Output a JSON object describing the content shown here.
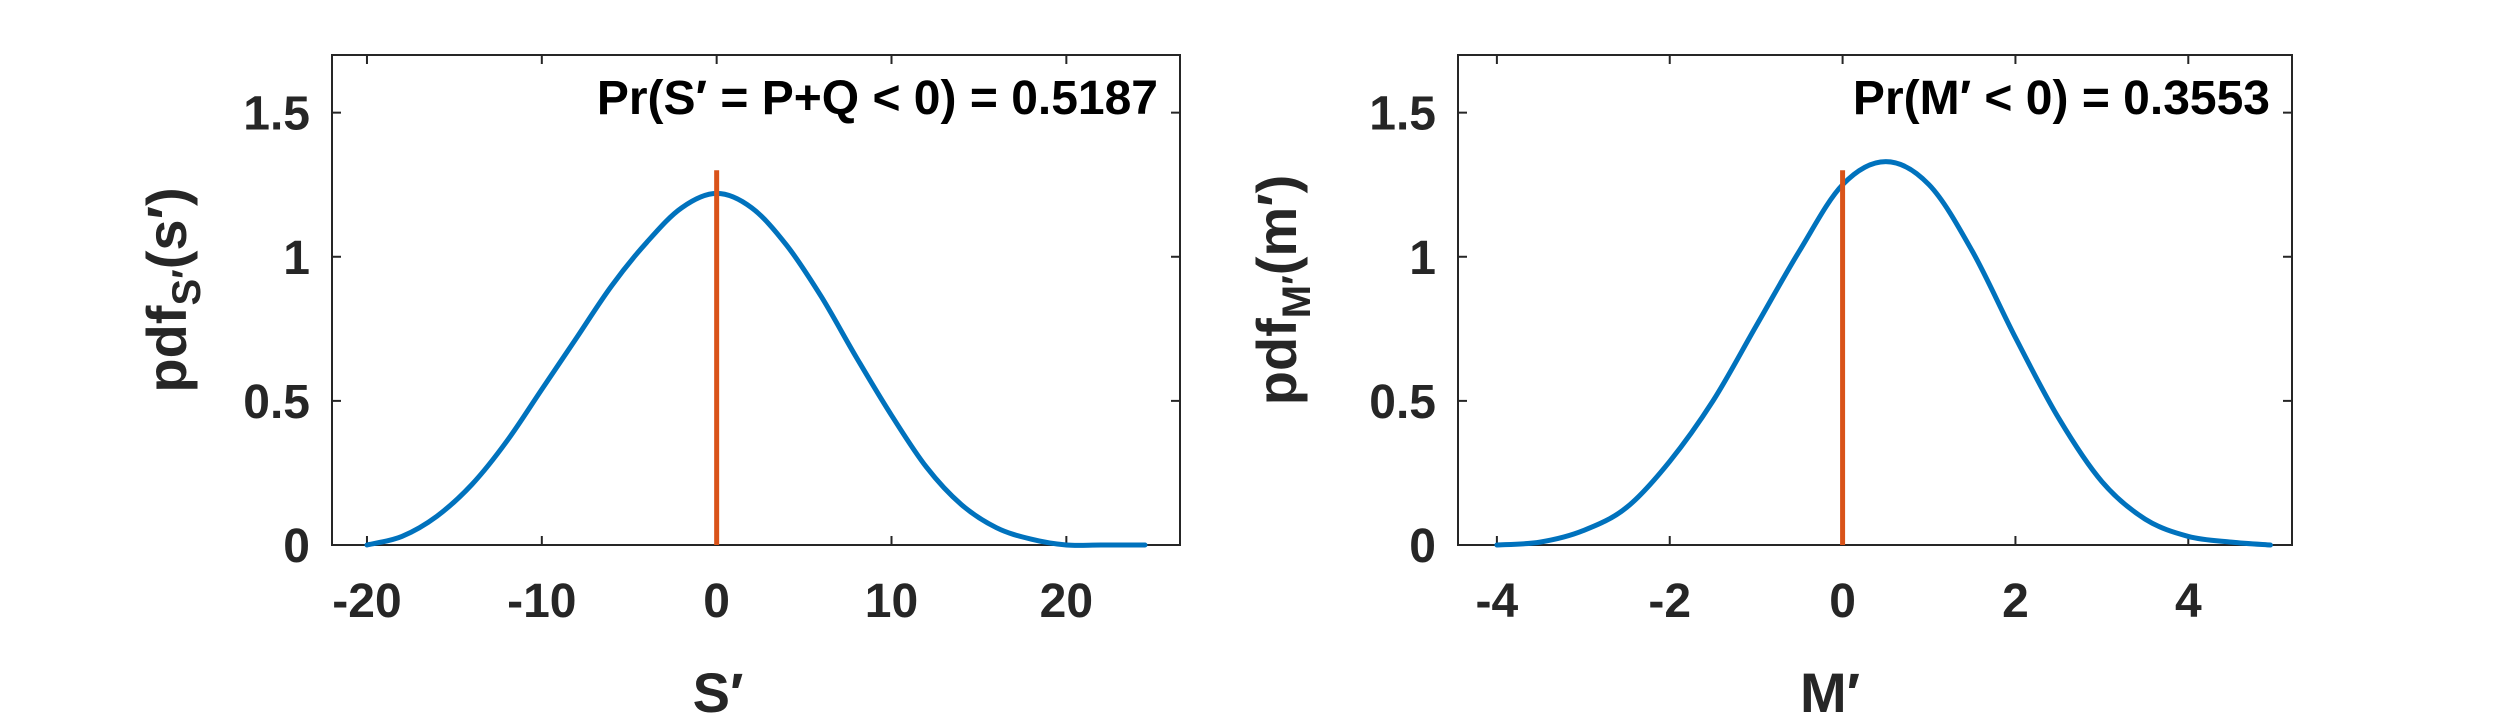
{
  "chart_data": [
    {
      "type": "line",
      "xlabel": "S′",
      "ylabel": {
        "main": "pdf",
        "sub": "S′",
        "arg": "(s′)"
      },
      "annotation": "Pr(S′ = P+Q < 0) = 0.5187",
      "xlim": [
        -22,
        26.5
      ],
      "ylim": [
        0,
        1.7
      ],
      "xticks": [
        -20,
        -10,
        0,
        10,
        20
      ],
      "xtick_labels": [
        "-20",
        "-10",
        "0",
        "10",
        "20"
      ],
      "yticks": [
        0,
        0.5,
        1,
        1.5
      ],
      "ytick_labels": [
        "0",
        "0.5",
        "1",
        "1.5"
      ],
      "grid": false,
      "series": [
        {
          "values_x": [
            -20,
            -18,
            -16,
            -14,
            -12,
            -10,
            -8,
            -6,
            -4,
            -2,
            0,
            2,
            4,
            6,
            8,
            10,
            12,
            14,
            16,
            18,
            20,
            22,
            24.5
          ],
          "values_y": [
            0.0,
            0.03,
            0.1,
            0.21,
            0.36,
            0.54,
            0.72,
            0.9,
            1.05,
            1.17,
            1.22,
            1.17,
            1.04,
            0.86,
            0.65,
            0.45,
            0.27,
            0.14,
            0.06,
            0.02,
            0.0,
            0.0,
            0.0
          ]
        }
      ],
      "marker": {
        "x": 0,
        "y_top": 1.3
      },
      "colors": {
        "curve": "#0072BD",
        "marker": "#D95319"
      }
    },
    {
      "type": "line",
      "xlabel": "M′",
      "ylabel": {
        "main": "pdf",
        "sub": "M′",
        "arg": "(m′)"
      },
      "annotation": "Pr(M′ < 0) = 0.3553",
      "xlim": [
        -4.45,
        5.2
      ],
      "ylim": [
        0,
        1.7
      ],
      "xticks": [
        -4,
        -2,
        0,
        2,
        4
      ],
      "xtick_labels": [
        "-4",
        "-2",
        "0",
        "2",
        "4"
      ],
      "yticks": [
        0,
        0.5,
        1,
        1.5
      ],
      "ytick_labels": [
        "0",
        "0.5",
        "1",
        "1.5"
      ],
      "grid": false,
      "series": [
        {
          "values_x": [
            -4,
            -3.5,
            -3,
            -2.5,
            -2,
            -1.5,
            -1,
            -0.5,
            0,
            0.5,
            1,
            1.5,
            2,
            2.5,
            3,
            3.5,
            4,
            4.5,
            4.95
          ],
          "values_y": [
            0.0,
            0.01,
            0.05,
            0.13,
            0.29,
            0.5,
            0.76,
            1.02,
            1.25,
            1.33,
            1.25,
            1.02,
            0.72,
            0.44,
            0.22,
            0.09,
            0.03,
            0.01,
            0.0
          ]
        }
      ],
      "marker": {
        "x": 0,
        "y_top": 1.3
      },
      "colors": {
        "curve": "#0072BD",
        "marker": "#D95319"
      }
    }
  ]
}
